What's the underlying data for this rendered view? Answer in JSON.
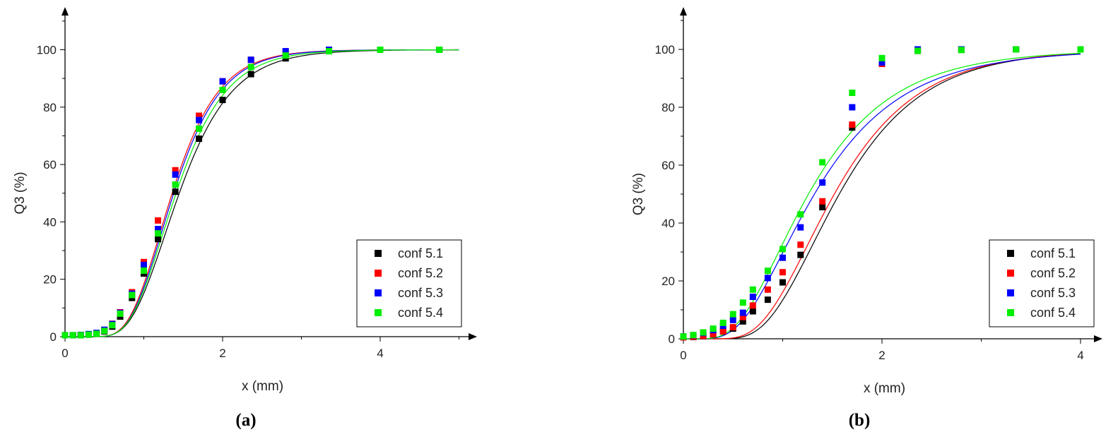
{
  "chart_data": [
    {
      "type": "scatter",
      "panel_label": "(a)",
      "xlabel": "x (mm)",
      "ylabel": "Q3 (%)",
      "xlim": [
        0,
        5
      ],
      "ylim": [
        0,
        110
      ],
      "xticks": [
        0,
        2,
        4
      ],
      "yticks": [
        0,
        20,
        40,
        60,
        80,
        100
      ],
      "grid": false,
      "legend_position": "bottom-right",
      "fit_lines": true,
      "series": [
        {
          "name": "conf 5.1",
          "color": "#000000",
          "fit": {
            "median": 1.45,
            "sigma": 0.36
          },
          "x": [
            0.0,
            0.1,
            0.2,
            0.3,
            0.4,
            0.5,
            0.6,
            0.7,
            0.85,
            1.0,
            1.18,
            1.4,
            1.7,
            2.0,
            2.36,
            2.8,
            3.35,
            4.0,
            4.75
          ],
          "y": [
            0.5,
            0.5,
            0.5,
            0.7,
            1.0,
            1.8,
            3.5,
            7.0,
            13.5,
            22.0,
            34.0,
            50.5,
            69.0,
            82.5,
            91.5,
            97.0,
            99.5,
            100,
            100
          ]
        },
        {
          "name": "conf 5.2",
          "color": "#ff0000",
          "fit": {
            "median": 1.36,
            "sigma": 0.34
          },
          "x": [
            0.0,
            0.1,
            0.2,
            0.3,
            0.4,
            0.5,
            0.6,
            0.7,
            0.85,
            1.0,
            1.18,
            1.4,
            1.7,
            2.0,
            2.36,
            2.8,
            3.35,
            4.0,
            4.75
          ],
          "y": [
            0.5,
            0.5,
            0.5,
            0.8,
            1.2,
            2.3,
            4.5,
            8.5,
            15.5,
            26.0,
            40.5,
            58.0,
            77.0,
            89.0,
            96.5,
            99.0,
            100,
            100,
            100
          ]
        },
        {
          "name": "conf 5.3",
          "color": "#0000ff",
          "fit": {
            "median": 1.38,
            "sigma": 0.34
          },
          "x": [
            0.0,
            0.1,
            0.2,
            0.3,
            0.4,
            0.5,
            0.6,
            0.7,
            0.85,
            1.0,
            1.18,
            1.4,
            1.7,
            2.0,
            2.36,
            2.8,
            3.35,
            4.0,
            4.75
          ],
          "y": [
            0.5,
            0.5,
            0.6,
            0.9,
            1.3,
            2.4,
            4.4,
            8.3,
            15.0,
            25.0,
            37.5,
            56.5,
            75.5,
            89.0,
            96.5,
            99.5,
            100,
            100,
            100
          ]
        },
        {
          "name": "conf 5.4",
          "color": "#00ee00",
          "fit": {
            "median": 1.41,
            "sigma": 0.35
          },
          "x": [
            0.0,
            0.1,
            0.2,
            0.3,
            0.4,
            0.5,
            0.6,
            0.7,
            0.85,
            1.0,
            1.18,
            1.4,
            1.7,
            2.0,
            2.36,
            2.8,
            3.35,
            4.0,
            4.75
          ],
          "y": [
            0.5,
            0.5,
            0.5,
            0.7,
            1.0,
            2.0,
            4.0,
            8.0,
            14.5,
            23.0,
            36.0,
            53.0,
            72.5,
            86.0,
            94.0,
            98.0,
            99.5,
            100,
            100
          ]
        }
      ]
    },
    {
      "type": "scatter",
      "panel_label": "(b)",
      "xlabel": "x (mm)",
      "ylabel": "Q3 (%)",
      "xlim": [
        0,
        4
      ],
      "ylim": [
        0,
        110
      ],
      "xticks": [
        0,
        2,
        4
      ],
      "yticks": [
        0,
        20,
        40,
        60,
        80,
        100
      ],
      "grid": false,
      "legend_position": "bottom-right",
      "fit_lines": true,
      "series": [
        {
          "name": "conf 5.1",
          "color": "#000000",
          "fit": {
            "median": 1.45,
            "sigma": 0.45,
            "offset": 0.12
          },
          "x": [
            0.0,
            0.1,
            0.2,
            0.3,
            0.4,
            0.5,
            0.6,
            0.7,
            0.85,
            1.0,
            1.18,
            1.4,
            1.7,
            2.0,
            2.36,
            2.8,
            3.35,
            4.0
          ],
          "y": [
            0.5,
            0.6,
            0.9,
            1.5,
            2.5,
            3.5,
            6.0,
            9.5,
            13.5,
            19.5,
            29.0,
            45.5,
            73.0,
            95.0,
            99.5,
            100,
            100,
            100
          ]
        },
        {
          "name": "conf 5.2",
          "color": "#ff0000",
          "fit": {
            "median": 1.42,
            "sigma": 0.46,
            "offset": 0.1
          },
          "x": [
            0.0,
            0.1,
            0.2,
            0.3,
            0.4,
            0.5,
            0.6,
            0.7,
            0.85,
            1.0,
            1.18,
            1.4,
            1.7,
            2.0,
            2.36,
            2.8,
            3.35,
            4.0
          ],
          "y": [
            0.5,
            0.7,
            1.0,
            1.6,
            2.6,
            4.0,
            7.5,
            11.5,
            17.0,
            23.0,
            32.5,
            47.5,
            74.0,
            95.0,
            99.5,
            100,
            100,
            100
          ]
        },
        {
          "name": "conf 5.3",
          "color": "#0000ff",
          "fit": {
            "median": 1.32,
            "sigma": 0.52,
            "offset": 0.0
          },
          "x": [
            0.0,
            0.1,
            0.2,
            0.3,
            0.4,
            0.5,
            0.6,
            0.7,
            0.85,
            1.0,
            1.18,
            1.4,
            1.7,
            2.0,
            2.36,
            2.8,
            3.35,
            4.0
          ],
          "y": [
            0.8,
            1.2,
            2.0,
            3.0,
            4.5,
            6.5,
            9.0,
            14.5,
            21.0,
            28.0,
            38.5,
            54.0,
            80.0,
            95.5,
            100,
            100,
            100,
            100
          ]
        },
        {
          "name": "conf 5.4",
          "color": "#00ee00",
          "fit": {
            "median": 1.26,
            "sigma": 0.52,
            "offset": 0.0
          },
          "x": [
            0.0,
            0.1,
            0.2,
            0.3,
            0.4,
            0.5,
            0.6,
            0.7,
            0.85,
            1.0,
            1.18,
            1.4,
            1.7,
            2.0,
            2.36,
            2.8,
            3.35,
            4.0
          ],
          "y": [
            0.8,
            1.3,
            2.2,
            3.5,
            5.5,
            8.5,
            12.5,
            17.0,
            23.5,
            31.0,
            43.0,
            61.0,
            85.0,
            97.0,
            99.5,
            99.8,
            100,
            100
          ]
        }
      ]
    }
  ]
}
